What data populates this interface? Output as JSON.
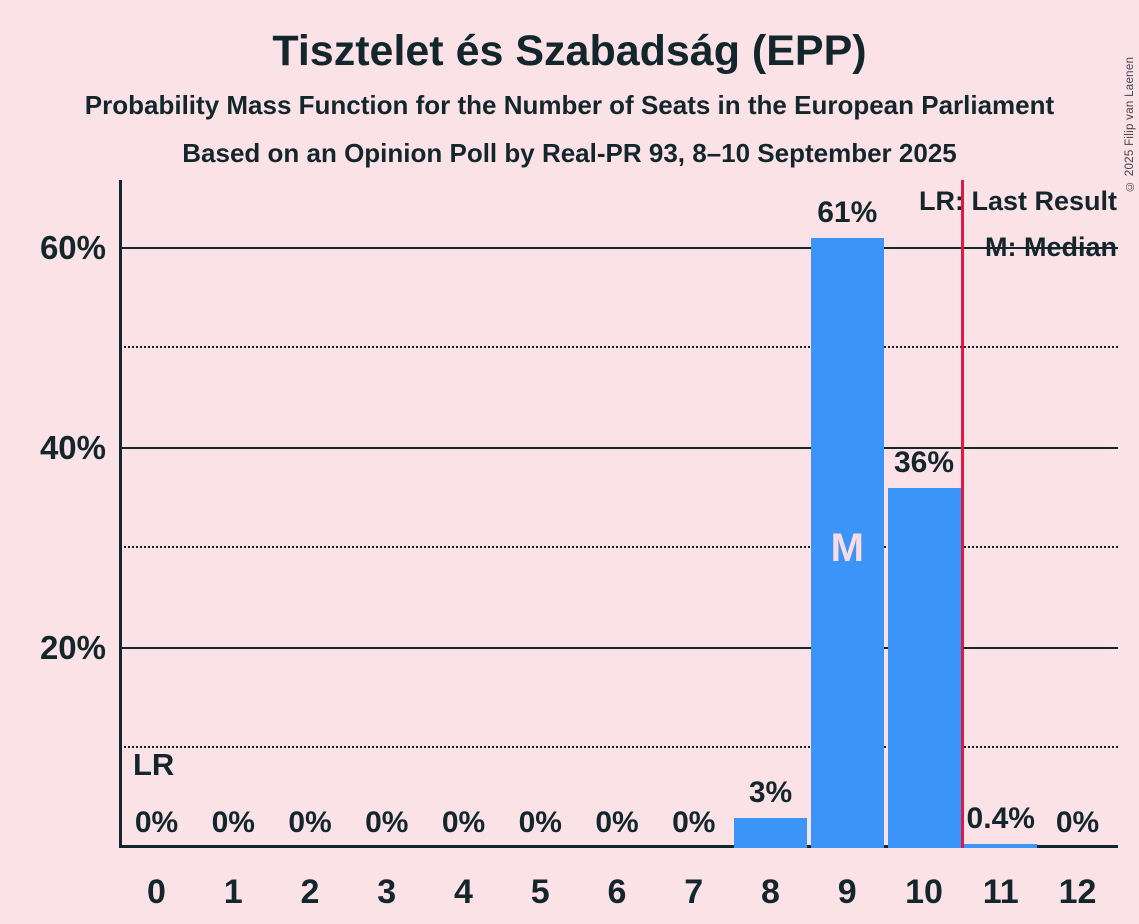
{
  "title": "Tisztelet és Szabadság (EPP)",
  "subtitle1": "Probability Mass Function for the Number of Seats in the European Parliament",
  "subtitle2": "Based on an Opinion Poll by Real-PR 93, 8–10 September 2025",
  "copyright": "© 2025 Filip van Laenen",
  "legend": {
    "last_result": "LR: Last Result",
    "median": "M: Median"
  },
  "annotations": {
    "last_result_marker": "LR",
    "median_marker": "M"
  },
  "colors": {
    "background": "#fbe2e7",
    "text": "#13262c",
    "bar": "#3b95f9",
    "last_result_line": "#dc1a43",
    "median_text": "#f8dce3",
    "copyright_text": "#3f444a"
  },
  "chart_data": {
    "type": "bar",
    "title": "Tisztelet és Szabadság (EPP)",
    "xlabel": "",
    "ylabel": "",
    "categories": [
      0,
      1,
      2,
      3,
      4,
      5,
      6,
      7,
      8,
      9,
      10,
      11,
      12
    ],
    "values": [
      0,
      0,
      0,
      0,
      0,
      0,
      0,
      0,
      3,
      61,
      36,
      0.4,
      0
    ],
    "value_labels": [
      "0%",
      "0%",
      "0%",
      "0%",
      "0%",
      "0%",
      "0%",
      "0%",
      "3%",
      "61%",
      "36%",
      "0.4%",
      "0%"
    ],
    "y_ticks": [
      {
        "pct": 20,
        "label": "20%"
      },
      {
        "pct": 40,
        "label": "40%"
      },
      {
        "pct": 60,
        "label": "60%"
      }
    ],
    "solid_gridlines_pct": [
      20,
      40,
      60
    ],
    "dotted_gridlines_pct": [
      10,
      30,
      50
    ],
    "ylim": [
      0,
      66.8
    ],
    "median_category": 9,
    "last_result_x": 10.5,
    "grid": "horizontal",
    "legend_position": "top-right"
  }
}
